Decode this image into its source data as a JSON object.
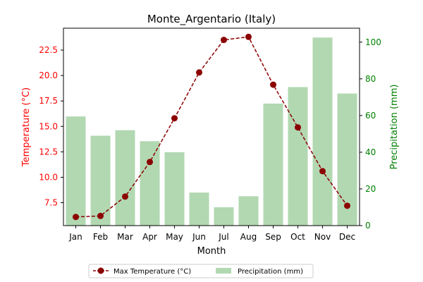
{
  "chart_data": {
    "type": "bar+line",
    "title": "Monte_Argentario (Italy)",
    "xlabel": "Month",
    "categories": [
      "Jan",
      "Feb",
      "Mar",
      "Apr",
      "May",
      "Jun",
      "Jul",
      "Aug",
      "Sep",
      "Oct",
      "Nov",
      "Dec"
    ],
    "series": [
      {
        "name": "Max Temperature (°C)",
        "type": "line",
        "axis": "left",
        "color": "#8b0000",
        "values": [
          6.1,
          6.2,
          8.1,
          11.5,
          15.8,
          20.3,
          23.5,
          23.8,
          19.1,
          14.9,
          10.6,
          7.2
        ]
      },
      {
        "name": "Precipitation (mm)",
        "type": "bar",
        "axis": "right",
        "color": "#b2d8b2",
        "values": [
          59.5,
          49.0,
          52.0,
          46.0,
          40.0,
          18.0,
          10.0,
          16.0,
          66.5,
          75.5,
          102.5,
          72.0
        ]
      }
    ],
    "y_left": {
      "label": "Temperature (°C)",
      "color": "#ff0000",
      "range": [
        5.25,
        24.65
      ],
      "ticks": [
        "7.5",
        "10.0",
        "12.5",
        "15.0",
        "17.5",
        "20.0",
        "22.5"
      ]
    },
    "y_right": {
      "label": "Precipitation (mm)",
      "color": "#008000",
      "range": [
        0,
        107.6
      ],
      "ticks": [
        "0",
        "20",
        "40",
        "60",
        "80",
        "100"
      ]
    },
    "legend_position": "bottom-center",
    "grid": false
  }
}
